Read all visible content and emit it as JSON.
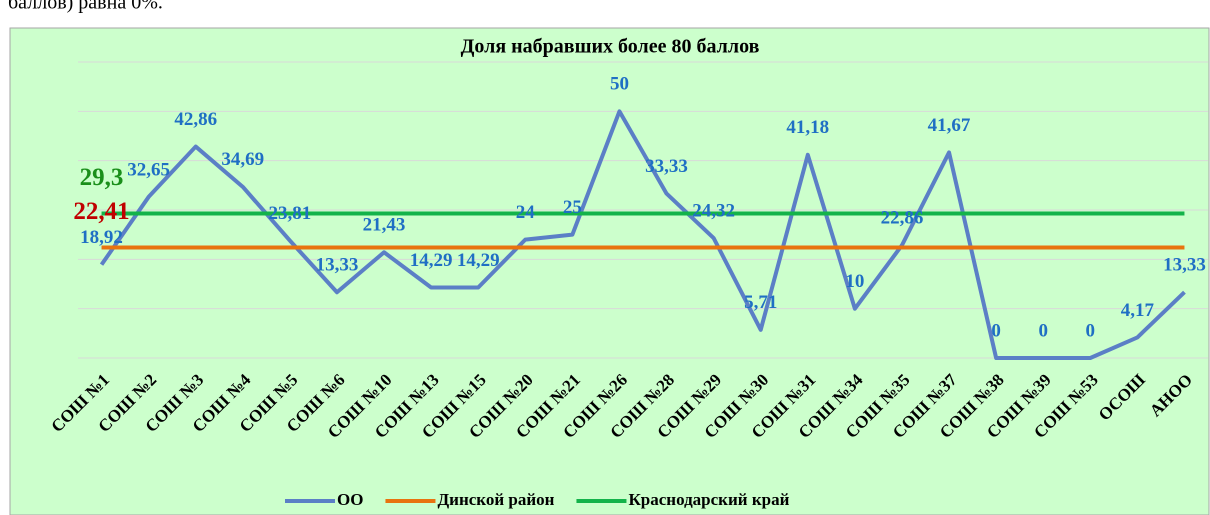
{
  "header_text": "баллов) равна 0%.",
  "chart_data": {
    "type": "line",
    "title": "Доля набравших более 80 баллов",
    "categories": [
      "СОШ №1",
      "СОШ №2",
      "СОШ №3",
      "СОШ №4",
      "СОШ №5",
      "СОШ №6",
      "СОШ №10",
      "СОШ №13",
      "СОШ №15",
      "СОШ №20",
      "СОШ №21",
      "СОШ №26",
      "СОШ №28",
      "СОШ №29",
      "СОШ №30",
      "СОШ №31",
      "СОШ №34",
      "СОШ №35",
      "СОШ №37",
      "СОШ №38",
      "СОШ №39",
      "СОШ №53",
      "ОСОШ",
      "АНОО"
    ],
    "series": [
      {
        "name": "ОО",
        "color": "#5b7fc6",
        "label_color": "#1f6fc4",
        "values": [
          18.92,
          32.65,
          42.86,
          34.69,
          23.81,
          13.33,
          21.43,
          14.29,
          14.29,
          24,
          25,
          50,
          33.33,
          24.32,
          5.71,
          41.18,
          10,
          22.86,
          41.67,
          0,
          0,
          0,
          4.17,
          13.33
        ],
        "value_labels": [
          "18,92",
          "32,65",
          "42,86",
          "34,69",
          "23,81",
          "13,33",
          "21,43",
          "14,29",
          "14,29",
          "24",
          "25",
          "50",
          "33,33",
          "24,32",
          "5,71",
          "41,18",
          "10",
          "22,86",
          "41,67",
          "0",
          "0",
          "0",
          "4,17",
          "13,33"
        ]
      },
      {
        "name": "Динской район",
        "color": "#e8730f",
        "label_color": "#c00000",
        "values": [
          22.41,
          22.41,
          22.41,
          22.41,
          22.41,
          22.41,
          22.41,
          22.41,
          22.41,
          22.41,
          22.41,
          22.41,
          22.41,
          22.41,
          22.41,
          22.41,
          22.41,
          22.41,
          22.41,
          22.41,
          22.41,
          22.41,
          22.41,
          22.41
        ],
        "value_labels": [
          "22,41",
          null,
          null,
          null,
          null,
          null,
          null,
          null,
          null,
          null,
          null,
          null,
          null,
          null,
          null,
          null,
          null,
          null,
          null,
          null,
          null,
          null,
          null,
          null
        ]
      },
      {
        "name": "Краснодарский край",
        "color": "#13b34a",
        "label_color": "#1a8f1a",
        "values": [
          29.3,
          29.3,
          29.3,
          29.3,
          29.3,
          29.3,
          29.3,
          29.3,
          29.3,
          29.3,
          29.3,
          29.3,
          29.3,
          29.3,
          29.3,
          29.3,
          29.3,
          29.3,
          29.3,
          29.3,
          29.3,
          29.3,
          29.3,
          29.3
        ],
        "value_labels": [
          "29,3",
          null,
          null,
          null,
          null,
          null,
          null,
          null,
          null,
          null,
          null,
          null,
          null,
          null,
          null,
          null,
          null,
          null,
          null,
          null,
          null,
          null,
          null,
          null
        ]
      }
    ],
    "ylim": [
      0,
      60
    ],
    "yticks": [
      0,
      10,
      20,
      30,
      40,
      50,
      60
    ],
    "grid": true,
    "legend": "bottom",
    "background": "#ccffcc"
  }
}
